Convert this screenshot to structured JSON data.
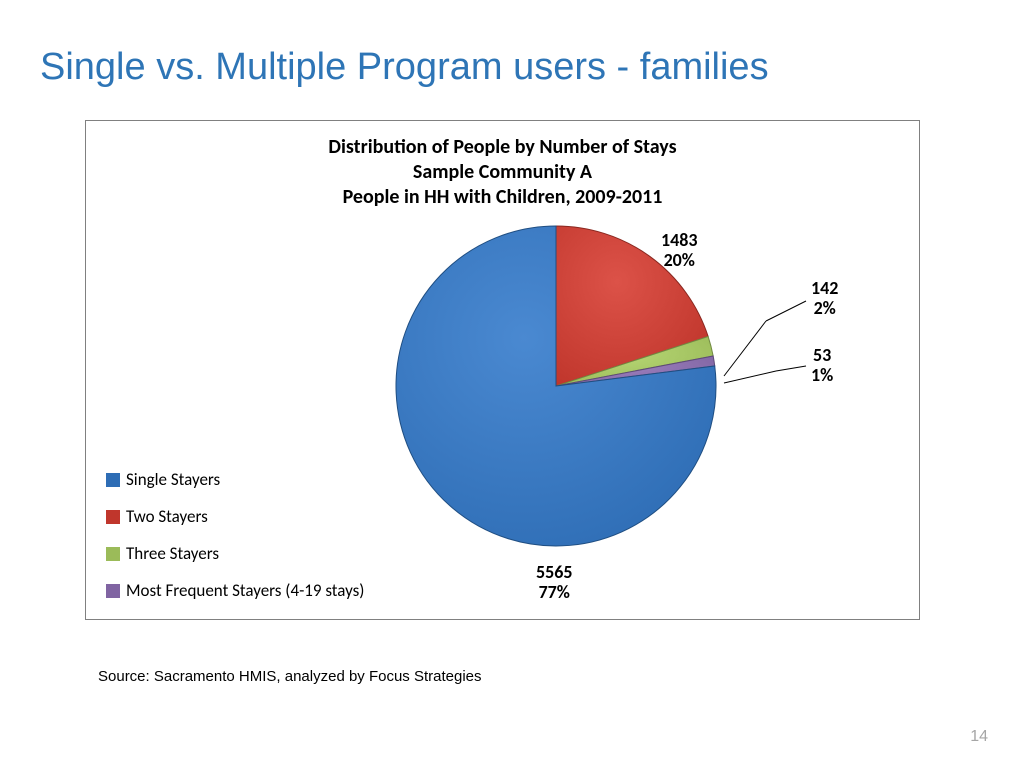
{
  "slide": {
    "title": "Single vs. Multiple Program users - families",
    "title_color": "#2e75b6",
    "title_fontsize": 38,
    "page_number": "14",
    "page_number_color": "#a6a6a6"
  },
  "source_note": "Source: Sacramento HMIS, analyzed by Focus Strategies",
  "chart": {
    "type": "pie",
    "title_line1": "Distribution of People by Number of Stays",
    "title_line2": "Sample Community A",
    "title_line3": "People in HH with Children, 2009-2011",
    "title_fontsize": 20,
    "title_color": "#000000",
    "border_color": "#808080",
    "background_color": "#ffffff",
    "rotation_deg": 0,
    "radius": 160,
    "slices": [
      {
        "label": "Single Stayers",
        "count": 5565,
        "percent": 77,
        "color": "#2e6db5",
        "edge": "#1f4e82"
      },
      {
        "label": "Two Stayers",
        "count": 1483,
        "percent": 20,
        "color": "#c0362c",
        "edge": "#8a2820"
      },
      {
        "label": "Three Stayers",
        "count": 142,
        "percent": 2,
        "color": "#9bbb59",
        "edge": "#728a42"
      },
      {
        "label": "Most Frequent Stayers (4-19 stays)",
        "count": 53,
        "percent": 1,
        "color": "#8064a2",
        "edge": "#5e4a78"
      }
    ],
    "data_labels": [
      {
        "text_top": "5565",
        "text_bottom": "77%",
        "pos": "bottom",
        "fontsize": 18
      },
      {
        "text_top": "1483",
        "text_bottom": "20%",
        "pos": "upper-right",
        "fontsize": 18
      },
      {
        "text_top": "142",
        "text_bottom": "2%",
        "pos": "right-1",
        "fontsize": 18
      },
      {
        "text_top": "53",
        "text_bottom": "1%",
        "pos": "right-2",
        "fontsize": 18
      }
    ],
    "legend": {
      "position": "bottom-left",
      "fontsize": 17,
      "items": [
        {
          "label": "Single Stayers",
          "color": "#2e6db5"
        },
        {
          "label": "Two Stayers",
          "color": "#c0362c"
        },
        {
          "label": "Three Stayers",
          "color": "#9bbb59"
        },
        {
          "label": "Most Frequent Stayers (4-19 stays)",
          "color": "#8064a2"
        }
      ]
    }
  }
}
